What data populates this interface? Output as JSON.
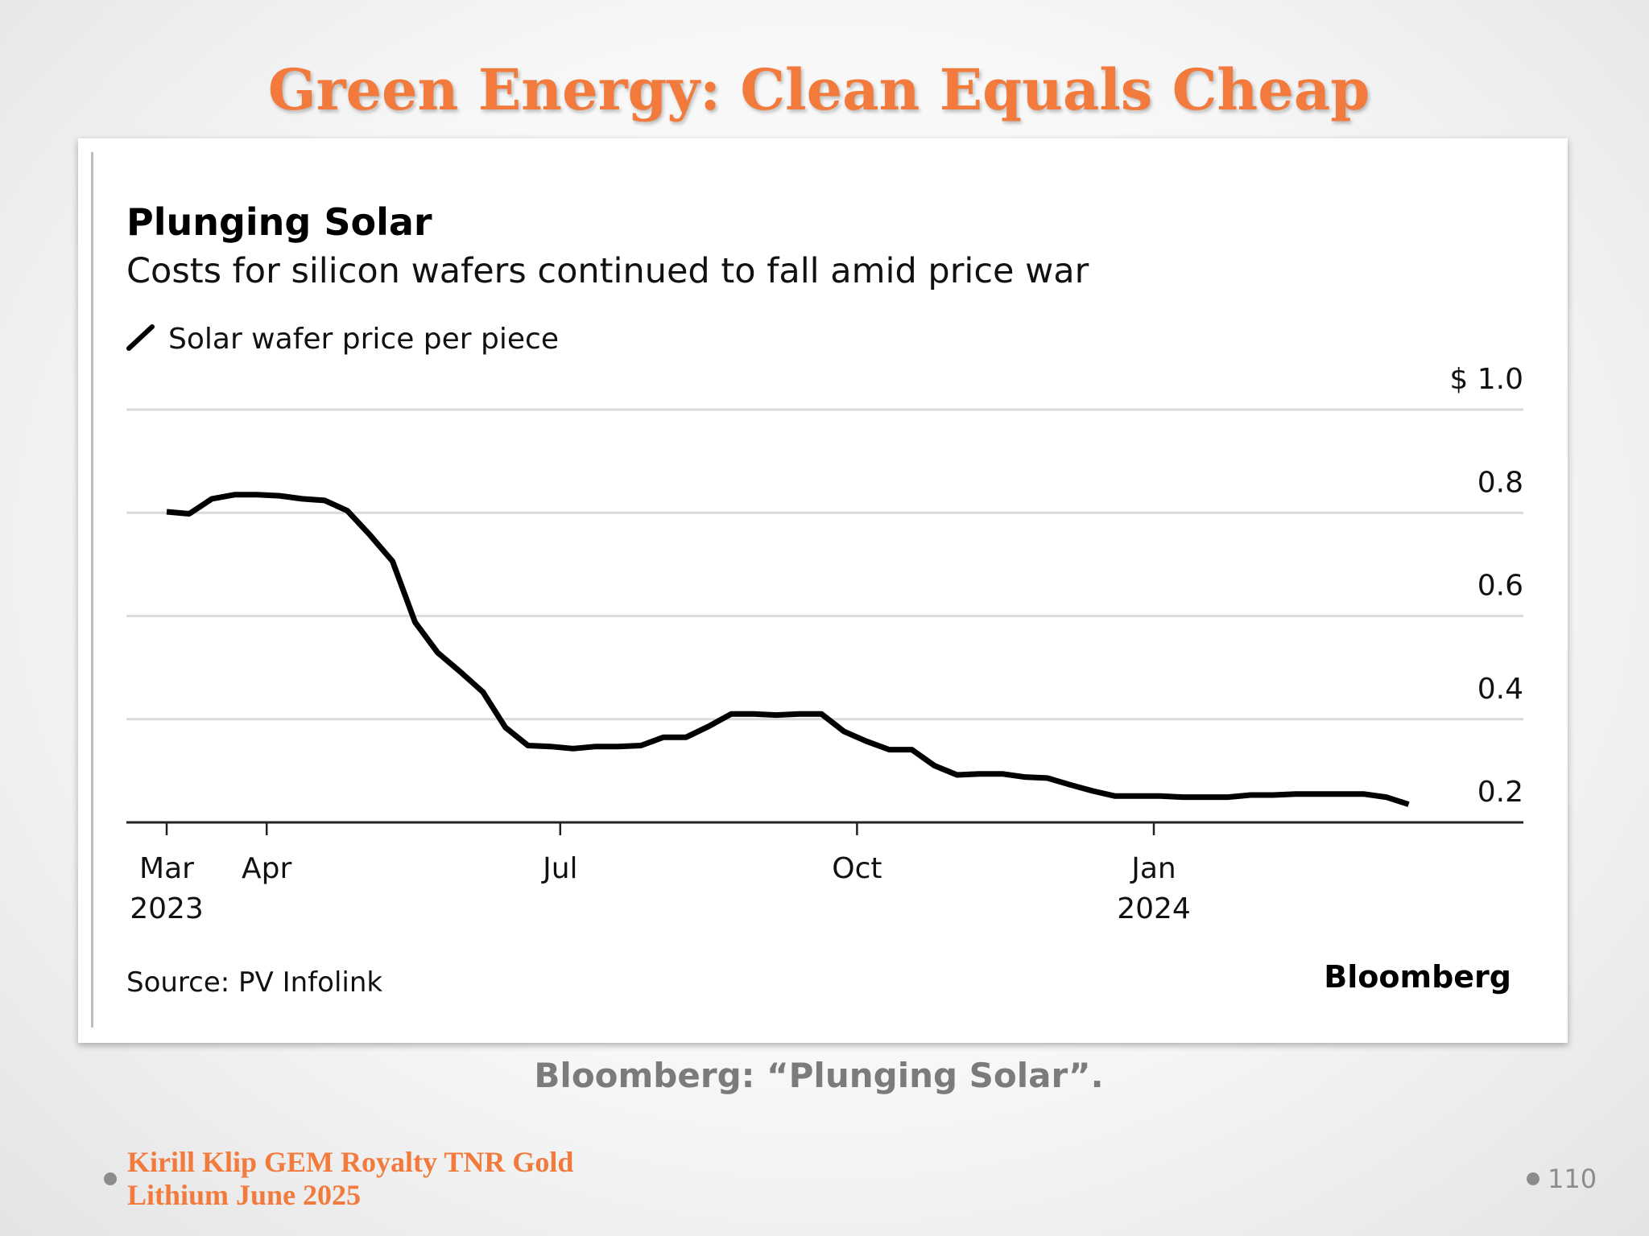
{
  "slide": {
    "title": "Green Energy: Clean Equals Cheap",
    "caption": "Bloomberg: “Plunging Solar”.",
    "footer_line1": "Kirill Klip GEM Royalty TNR Gold",
    "footer_line2": "Lithium June 2025",
    "page_number": "110",
    "accent_color": "#f27a3c"
  },
  "chart_data": {
    "type": "line",
    "title": "Plunging Solar",
    "subtitle": "Costs for silicon wafers continued to fall amid price war",
    "legend": "Solar wafer price per piece",
    "source": "Source: PV Infolink",
    "brand": "Bloomberg",
    "ylim": [
      0.2,
      1.0
    ],
    "y_ticks": [
      "0.2",
      "0.4",
      "0.6",
      "0.8",
      "$ 1.0"
    ],
    "y_tick_values": [
      0.2,
      0.4,
      0.6,
      0.8,
      1.0
    ],
    "grid": true,
    "y_axis_position": "right",
    "x_ticks": [
      {
        "date": "2023-03-01",
        "label": "Mar",
        "year": "2023"
      },
      {
        "date": "2023-04-01",
        "label": "Apr",
        "year": ""
      },
      {
        "date": "2023-07-01",
        "label": "Jul",
        "year": ""
      },
      {
        "date": "2023-10-01",
        "label": "Oct",
        "year": ""
      },
      {
        "date": "2024-01-01",
        "label": "Jan",
        "year": "2024"
      }
    ],
    "series": [
      {
        "name": "Solar wafer price per piece",
        "color": "#000000",
        "x": [
          "2023-03-01",
          "2023-03-08",
          "2023-03-15",
          "2023-03-22",
          "2023-03-29",
          "2023-04-05",
          "2023-04-12",
          "2023-04-19",
          "2023-04-26",
          "2023-05-03",
          "2023-05-10",
          "2023-05-17",
          "2023-05-24",
          "2023-05-31",
          "2023-06-07",
          "2023-06-14",
          "2023-06-21",
          "2023-06-28",
          "2023-07-05",
          "2023-07-12",
          "2023-07-19",
          "2023-07-26",
          "2023-08-02",
          "2023-08-09",
          "2023-08-16",
          "2023-08-23",
          "2023-08-30",
          "2023-09-06",
          "2023-09-13",
          "2023-09-20",
          "2023-09-27",
          "2023-10-04",
          "2023-10-11",
          "2023-10-18",
          "2023-10-25",
          "2023-11-01",
          "2023-11-08",
          "2023-11-15",
          "2023-11-22",
          "2023-11-29",
          "2023-12-06",
          "2023-12-13",
          "2023-12-20",
          "2023-12-27",
          "2024-01-03",
          "2024-01-10",
          "2024-01-17",
          "2024-01-24",
          "2024-01-31",
          "2024-02-07",
          "2024-02-14",
          "2024-02-21",
          "2024-02-28",
          "2024-03-06",
          "2024-03-13",
          "2024-03-20"
        ],
        "y": [
          0.802,
          0.798,
          0.827,
          0.835,
          0.835,
          0.833,
          0.827,
          0.824,
          0.804,
          0.757,
          0.706,
          0.588,
          0.529,
          0.492,
          0.453,
          0.384,
          0.349,
          0.347,
          0.343,
          0.347,
          0.347,
          0.349,
          0.365,
          0.365,
          0.386,
          0.41,
          0.41,
          0.408,
          0.41,
          0.41,
          0.376,
          0.357,
          0.341,
          0.341,
          0.31,
          0.292,
          0.294,
          0.294,
          0.288,
          0.286,
          0.273,
          0.261,
          0.251,
          0.251,
          0.251,
          0.249,
          0.249,
          0.249,
          0.253,
          0.253,
          0.255,
          0.255,
          0.255,
          0.255,
          0.249,
          0.235
        ]
      }
    ]
  }
}
